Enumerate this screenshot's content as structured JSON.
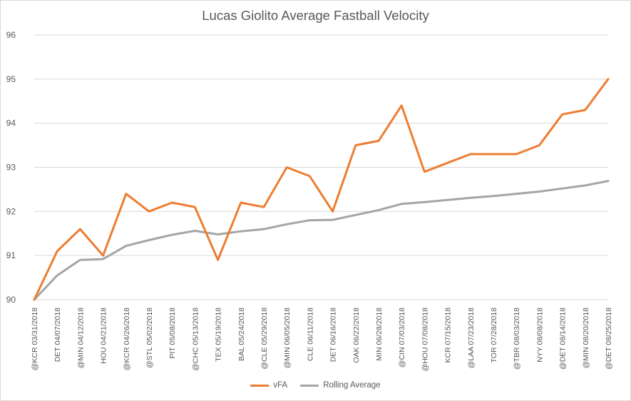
{
  "chart_data": {
    "type": "line",
    "title": "Lucas Giolito Average Fastball Velocity",
    "xlabel": "",
    "ylabel": "",
    "ylim": [
      90,
      96
    ],
    "yticks": [
      "90",
      "91",
      "92",
      "93",
      "94",
      "95",
      "96"
    ],
    "grid": true,
    "legend_position": "bottom",
    "categories": [
      "@KCR 03/31/2018",
      "DET 04/07/2018",
      "@MIN 04/12/2018",
      "HOU 04/21/2018",
      "@KCR 04/26/2018",
      "@STL 05/02/2018",
      "PIT 05/08/2018",
      "@CHC 05/13/2018",
      "TEX 05/19/2018",
      "BAL 05/24/2018",
      "@CLE 05/29/2018",
      "@MIN 06/05/2018",
      "CLE 06/11/2018",
      "DET 06/16/2018",
      "OAK 06/22/2018",
      "MIN 06/28/2018",
      "@CIN 07/03/2018",
      "@HOU 07/08/2018",
      "KCR 07/15/2018",
      "@LAA 07/23/2018",
      "TOR 07/28/2018",
      "@TBR 08/03/2018",
      "NYY 08/08/2018",
      "@DET 08/14/2018",
      "@MIN 08/20/2018",
      "@DET 08/25/2018"
    ],
    "series": [
      {
        "name": "vFA",
        "color": "#ed7d31",
        "values": [
          90.0,
          91.1,
          91.6,
          91.0,
          92.4,
          92.0,
          92.2,
          92.1,
          90.9,
          92.2,
          92.1,
          93.0,
          92.8,
          92.0,
          93.5,
          93.6,
          94.4,
          92.9,
          93.1,
          93.3,
          93.3,
          93.3,
          93.5,
          94.2,
          94.3,
          95.0
        ]
      },
      {
        "name": "Rolling Average",
        "color": "#a5a5a5",
        "values": [
          90.0,
          90.55,
          90.9,
          90.92,
          91.22,
          91.35,
          91.47,
          91.56,
          91.48,
          91.55,
          91.6,
          91.71,
          91.8,
          91.81,
          91.92,
          92.03,
          92.17,
          92.21,
          92.26,
          92.31,
          92.35,
          92.4,
          92.45,
          92.52,
          92.59,
          92.69
        ]
      }
    ]
  }
}
